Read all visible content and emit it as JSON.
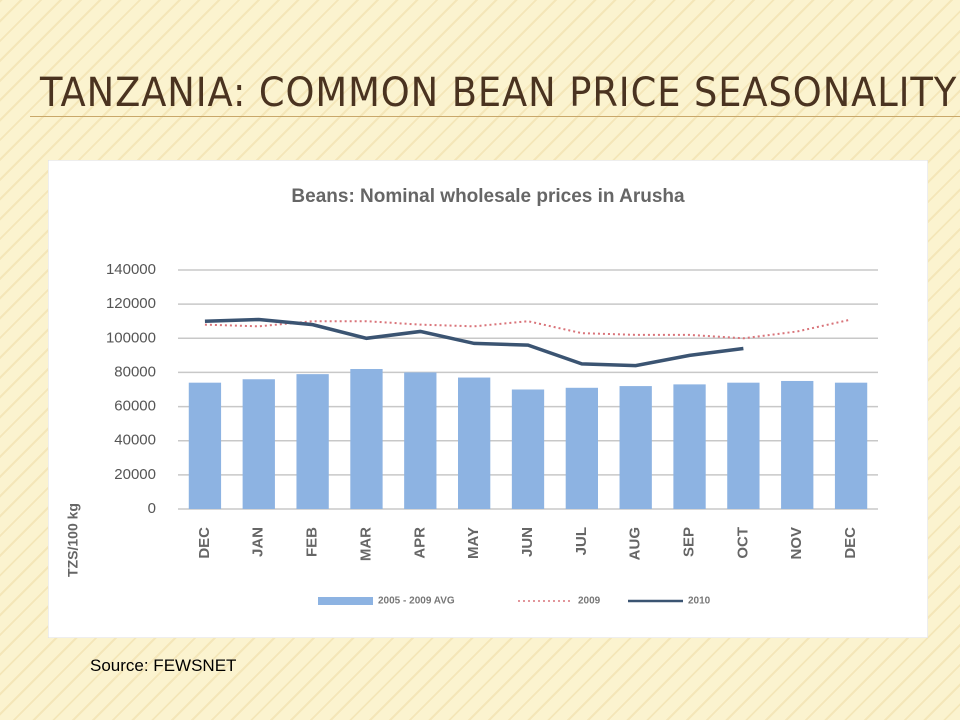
{
  "slide": {
    "title": "TANZANIA: COMMON BEAN PRICE SEASONALITY",
    "source": "Source: FEWSNET"
  },
  "chart_data": {
    "type": "bar",
    "title": "Beans: Nominal wholesale prices in Arusha",
    "y_label": "TZS/100 kg",
    "categories": [
      "DEC",
      "JAN",
      "FEB",
      "MAR",
      "APR",
      "MAY",
      "JUN",
      "JUL",
      "AUG",
      "SEP",
      "OCT",
      "NOV",
      "DEC"
    ],
    "series": [
      {
        "name": "2005 - 2009 AVG",
        "type": "bar",
        "color": "#8db3e2",
        "values": [
          74000,
          76000,
          79000,
          82000,
          80000,
          77000,
          70000,
          71000,
          72000,
          73000,
          74000,
          75000,
          74000
        ]
      },
      {
        "name": "2009",
        "type": "line",
        "style": "dotted",
        "color": "#d9747a",
        "values": [
          108000,
          107000,
          110000,
          110000,
          108000,
          107000,
          110000,
          103000,
          102000,
          102000,
          100000,
          104000,
          111000
        ]
      },
      {
        "name": "2010",
        "type": "line",
        "style": "solid",
        "color": "#3b5472",
        "values": [
          110000,
          111000,
          108000,
          100000,
          104000,
          97000,
          96000,
          85000,
          84000,
          90000,
          94000,
          null,
          null
        ]
      }
    ],
    "ylim": [
      0,
      140000
    ],
    "yticks": [
      0,
      20000,
      40000,
      60000,
      80000,
      100000,
      120000,
      140000
    ],
    "grid": true,
    "legend": "bottom"
  }
}
